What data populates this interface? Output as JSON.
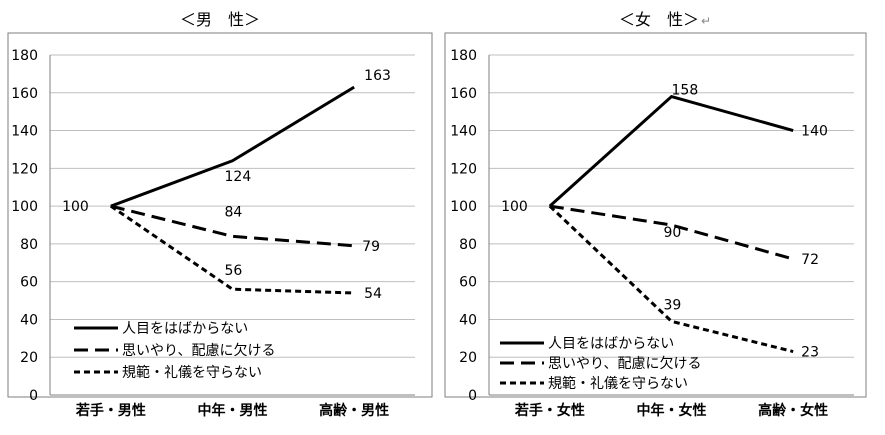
{
  "charts_titles": {
    "left": "＜男　性＞",
    "right": "＜女　性＞",
    "right_return_mark": "↵"
  },
  "chart_data": [
    {
      "type": "line",
      "title": "＜男　性＞",
      "categories": [
        "若手・男性",
        "中年・男性",
        "高齢・男性"
      ],
      "series": [
        {
          "name": "人目をはばからない",
          "values": [
            100,
            124,
            163
          ],
          "style": "solid"
        },
        {
          "name": "思いやり、配慮に欠ける",
          "values": [
            100,
            84,
            79
          ],
          "style": "long-dash"
        },
        {
          "name": "規範・礼儀を守らない",
          "values": [
            100,
            56,
            54
          ],
          "style": "short-dash"
        }
      ],
      "data_labels": [
        "100",
        "124",
        "163",
        "84",
        "79",
        "56",
        "54"
      ],
      "yticks": [
        "0",
        "20",
        "40",
        "60",
        "80",
        "100",
        "120",
        "140",
        "160",
        "180"
      ],
      "ylim": [
        0,
        180
      ],
      "grid": true,
      "legend_position": "bottom-left",
      "line_color": "#000000",
      "grid_color": "#bfbfbf"
    },
    {
      "type": "line",
      "title": "＜女　性＞",
      "categories": [
        "若手・女性",
        "中年・女性",
        "高齢・女性"
      ],
      "series": [
        {
          "name": "人目をはばからない",
          "values": [
            100,
            158,
            140
          ],
          "style": "solid"
        },
        {
          "name": "思いやり、配慮に欠ける",
          "values": [
            100,
            90,
            72
          ],
          "style": "long-dash"
        },
        {
          "name": "規範・礼儀を守らない",
          "values": [
            100,
            39,
            23
          ],
          "style": "short-dash"
        }
      ],
      "data_labels": [
        "100",
        "158",
        "140",
        "90",
        "72",
        "39",
        "23"
      ],
      "yticks": [
        "0",
        "20",
        "40",
        "60",
        "80",
        "100",
        "120",
        "140",
        "160",
        "180"
      ],
      "ylim": [
        0,
        180
      ],
      "grid": true,
      "legend_position": "bottom-left",
      "line_color": "#000000",
      "grid_color": "#bfbfbf"
    }
  ]
}
